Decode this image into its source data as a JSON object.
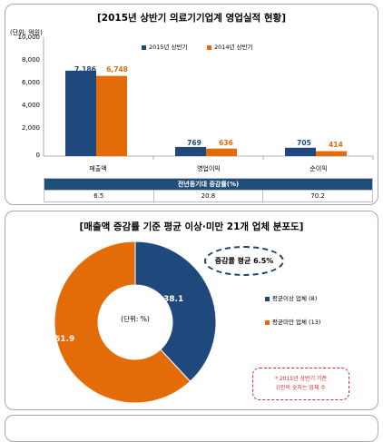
{
  "top_panel": {
    "title": "[2015년 상반기 의료기기업계 영업실적 현황]",
    "unit": "(단위: 억원)",
    "legend": [
      "2015년 상반기",
      "2014년 상반기"
    ],
    "yticks": [
      "10,000",
      "8,000",
      "6,000",
      "4,000",
      "2,000",
      "0"
    ],
    "growth_header": "전년동기대 증감률(%)",
    "growth_values": [
      "6.5",
      "20.8",
      "70.2"
    ]
  },
  "bottom_panel": {
    "title": "[매출액 증감률 기준 평균 이상·미만 21개 업체 분포도]",
    "callout": "증감률 평균 6.5%",
    "center_label": "(단위: %)",
    "note_line1": "* 2015년 상반기 기준",
    "note_line2": "()안의 숫자는 업체 수"
  },
  "colors": {
    "navy": "#1f497d",
    "orange": "#e36c09"
  },
  "chart_data": [
    {
      "type": "bar",
      "title": "[2015년 상반기 의료기기업계 영업실적 현황]",
      "ylabel": "(단위: 억원)",
      "ylim": [
        0,
        10000
      ],
      "grid": false,
      "legend_position": "top-right",
      "categories": [
        "매출액",
        "영업이익",
        "순이익"
      ],
      "series": [
        {
          "name": "2015년 상반기",
          "values": [
            7186,
            769,
            705
          ],
          "labels": [
            "7,186",
            "769",
            "705"
          ],
          "color": "#1f497d"
        },
        {
          "name": "2014년 상반기",
          "values": [
            6748,
            636,
            414
          ],
          "labels": [
            "6,748",
            "636",
            "414"
          ],
          "color": "#e36c09"
        }
      ]
    },
    {
      "type": "pie",
      "title": "[매출액 증감률 기준 평균 이상·미만 21개 업체 분포도]",
      "legend_position": "right",
      "slices": [
        {
          "name": "평균이상 업체",
          "count": "(8)",
          "value": 38.1,
          "label": "38.1",
          "color": "#1f497d"
        },
        {
          "name": "평균미만 업체",
          "count": "(13)",
          "value": 61.9,
          "label": "61.9",
          "color": "#e36c09"
        }
      ]
    }
  ]
}
